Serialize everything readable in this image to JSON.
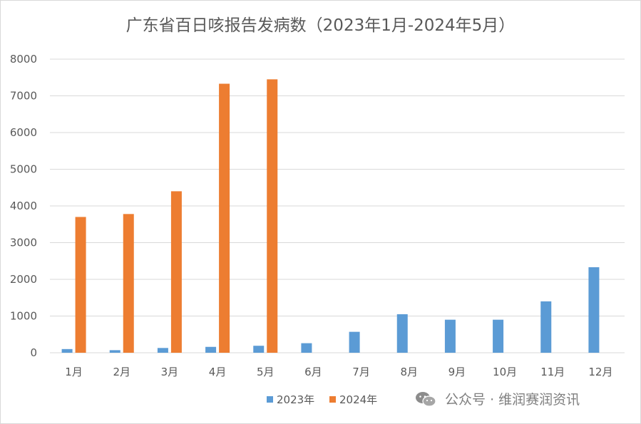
{
  "colors": {
    "series_2023": "#5b9bd5",
    "series_2024": "#ed7d31",
    "grid": "#d9d9d9",
    "text": "#595959"
  },
  "watermark": {
    "icon": "wechat-icon",
    "text": "公众号 · 维润赛润资讯"
  },
  "chart_data": {
    "type": "bar",
    "title": "广东省百日咳报告发病数（2023年1月-2024年5月）",
    "xlabel": "",
    "ylabel": "",
    "ylim": [
      0,
      8000
    ],
    "yticks": [
      0,
      1000,
      2000,
      3000,
      4000,
      5000,
      6000,
      7000,
      8000
    ],
    "categories": [
      "1月",
      "2月",
      "3月",
      "4月",
      "5月",
      "6月",
      "7月",
      "8月",
      "9月",
      "10月",
      "11月",
      "12月"
    ],
    "grid": true,
    "legend_position": "bottom",
    "series": [
      {
        "name": "2023年",
        "values": [
          100,
          70,
          130,
          160,
          190,
          260,
          570,
          1050,
          900,
          900,
          1400,
          2330
        ]
      },
      {
        "name": "2024年",
        "values": [
          3700,
          3780,
          4400,
          7330,
          7450,
          null,
          null,
          null,
          null,
          null,
          null,
          null
        ]
      }
    ]
  }
}
